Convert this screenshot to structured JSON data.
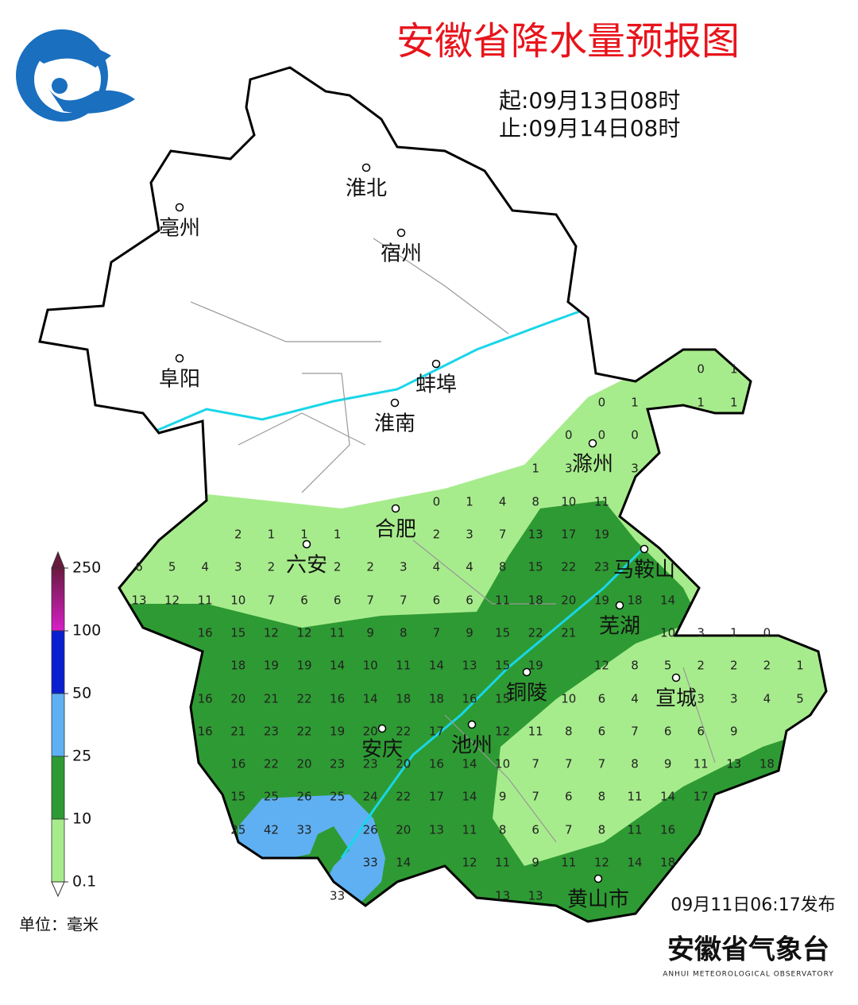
{
  "header": {
    "title": "安徽省降水量预报图",
    "start": "起:09月13日08时",
    "end": "止:09月14日08时"
  },
  "cities": [
    "淮北",
    "亳州",
    "宿州",
    "阜阳",
    "蚌埠",
    "淮南",
    "滁州",
    "合肥",
    "六安",
    "马鞍山",
    "芜湖",
    "铜陵",
    "宣城",
    "安庆",
    "池州",
    "黄山市"
  ],
  "grid_values": [
    [
      0,
      1
    ],
    [
      0,
      1,
      null,
      1,
      1
    ],
    [
      0,
      0,
      0
    ],
    [
      1,
      3,
      null,
      3
    ],
    [
      0,
      1,
      4,
      8,
      10,
      11
    ],
    [
      2,
      1,
      1,
      1,
      null,
      null,
      2,
      3,
      7,
      13,
      17,
      19
    ],
    [
      6,
      5,
      4,
      3,
      2,
      null,
      2,
      2,
      3,
      4,
      4,
      8,
      15,
      22,
      23
    ],
    [
      13,
      12,
      11,
      10,
      7,
      6,
      6,
      7,
      7,
      6,
      6,
      11,
      18,
      20,
      19,
      18,
      14
    ],
    [
      16,
      15,
      12,
      12,
      11,
      9,
      8,
      7,
      9,
      15,
      22,
      21,
      null,
      null,
      10,
      3,
      1,
      0
    ],
    [
      18,
      19,
      19,
      14,
      10,
      11,
      14,
      13,
      15,
      19,
      null,
      12,
      8,
      5,
      2,
      2,
      2,
      1
    ],
    [
      16,
      20,
      21,
      22,
      16,
      14,
      18,
      18,
      16,
      15,
      null,
      10,
      6,
      4,
      null,
      3,
      3,
      4,
      5
    ],
    [
      16,
      21,
      23,
      22,
      19,
      20,
      22,
      17,
      null,
      12,
      11,
      8,
      6,
      7,
      6,
      6,
      9
    ],
    [
      16,
      22,
      20,
      23,
      23,
      20,
      16,
      14,
      10,
      7,
      7,
      7,
      8,
      9,
      11,
      13,
      18
    ],
    [
      15,
      25,
      26,
      25,
      24,
      22,
      17,
      14,
      9,
      7,
      6,
      8,
      11,
      14,
      17
    ],
    [
      25,
      42,
      33,
      null,
      26,
      20,
      13,
      11,
      8,
      6,
      7,
      8,
      11,
      16
    ],
    [
      33,
      14,
      null,
      12,
      11,
      9,
      11,
      12,
      14,
      18
    ],
    [
      33,
      null,
      null,
      null,
      null,
      13,
      13
    ]
  ],
  "legend": {
    "ticks": [
      250,
      100,
      50,
      25,
      10,
      0.1
    ],
    "colors": [
      "#d81ec8",
      "#0a1fd0",
      "#5fb0f2",
      "#2e9a33",
      "#a7ec8c"
    ],
    "unit": "单位：毫米"
  },
  "footer": {
    "published": "09月11日06:17发布",
    "org": "安徽省气象台",
    "org_en": "ANHUI METEOROLOGICAL OBSERVATORY"
  }
}
